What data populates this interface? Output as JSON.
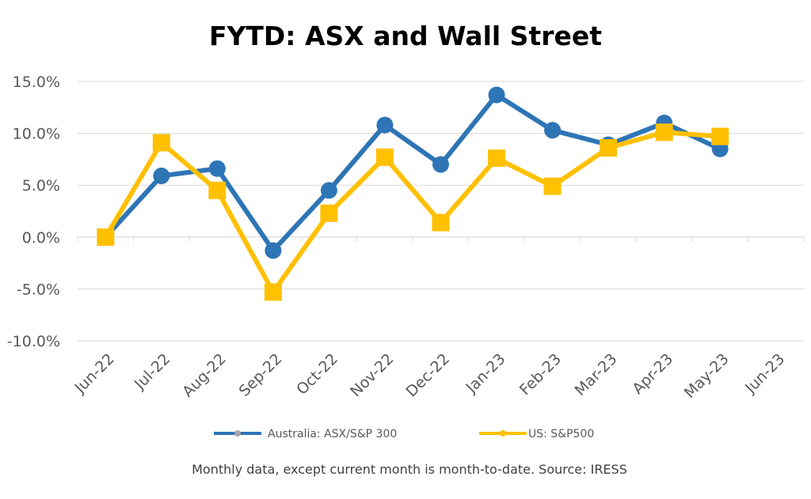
{
  "chart_data": {
    "type": "line",
    "title": "FYTD: ASX and Wall Street",
    "categories": [
      "Jun-22",
      "Jul-22",
      "Aug-22",
      "Sep-22",
      "Oct-22",
      "Nov-22",
      "Dec-22",
      "Jan-23",
      "Feb-23",
      "Mar-23",
      "Apr-23",
      "May-23",
      "Jun-23"
    ],
    "y_ticks": [
      "15.0%",
      "10.0%",
      "5.0%",
      "0.0%",
      "-5.0%",
      "-10.0%"
    ],
    "ylim": [
      -10,
      15
    ],
    "y_unit": "%",
    "grid": "horizontal",
    "legend_position": "bottom",
    "series": [
      {
        "name": "Australia: ASX/S&P 300",
        "color": "#2E75B6",
        "marker": "circle",
        "values": [
          0.0,
          5.9,
          6.6,
          -1.3,
          4.5,
          10.8,
          7.0,
          13.7,
          10.3,
          8.9,
          11.0,
          8.5,
          null
        ]
      },
      {
        "name": "US: S&P500",
        "color": "#FFC000",
        "marker": "square",
        "values": [
          0.0,
          9.1,
          4.5,
          -5.3,
          2.3,
          7.7,
          1.4,
          7.6,
          4.9,
          8.6,
          10.1,
          9.7,
          null
        ]
      }
    ],
    "footnote": "Monthly data, except current month is month-to-date.  Source: IRESS"
  }
}
